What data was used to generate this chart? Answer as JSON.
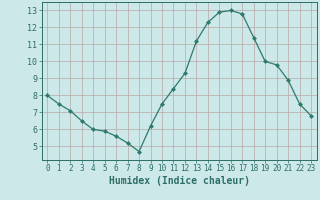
{
  "x": [
    0,
    1,
    2,
    3,
    4,
    5,
    6,
    7,
    8,
    9,
    10,
    11,
    12,
    13,
    14,
    15,
    16,
    17,
    18,
    19,
    20,
    21,
    22,
    23
  ],
  "y": [
    8.0,
    7.5,
    7.1,
    6.5,
    6.0,
    5.9,
    5.6,
    5.2,
    4.7,
    6.2,
    7.5,
    8.4,
    9.3,
    11.2,
    12.3,
    12.9,
    13.0,
    12.8,
    11.4,
    10.0,
    9.8,
    8.9,
    7.5,
    6.8
  ],
  "line_color": "#2d7a6e",
  "marker": "D",
  "marker_size": 2.0,
  "bg_color": "#cce8e8",
  "grid_color": "#b8a8a8",
  "xlabel": "Humidex (Indice chaleur)",
  "xlabel_fontsize": 7,
  "tick_fontsize": 5.5,
  "ytick_fontsize": 6.0,
  "tick_color": "#2d6e68",
  "ylim": [
    4.2,
    13.5
  ],
  "xlim": [
    -0.5,
    23.5
  ],
  "yticks": [
    5,
    6,
    7,
    8,
    9,
    10,
    11,
    12,
    13
  ],
  "xticks": [
    0,
    1,
    2,
    3,
    4,
    5,
    6,
    7,
    8,
    9,
    10,
    11,
    12,
    13,
    14,
    15,
    16,
    17,
    18,
    19,
    20,
    21,
    22,
    23
  ]
}
